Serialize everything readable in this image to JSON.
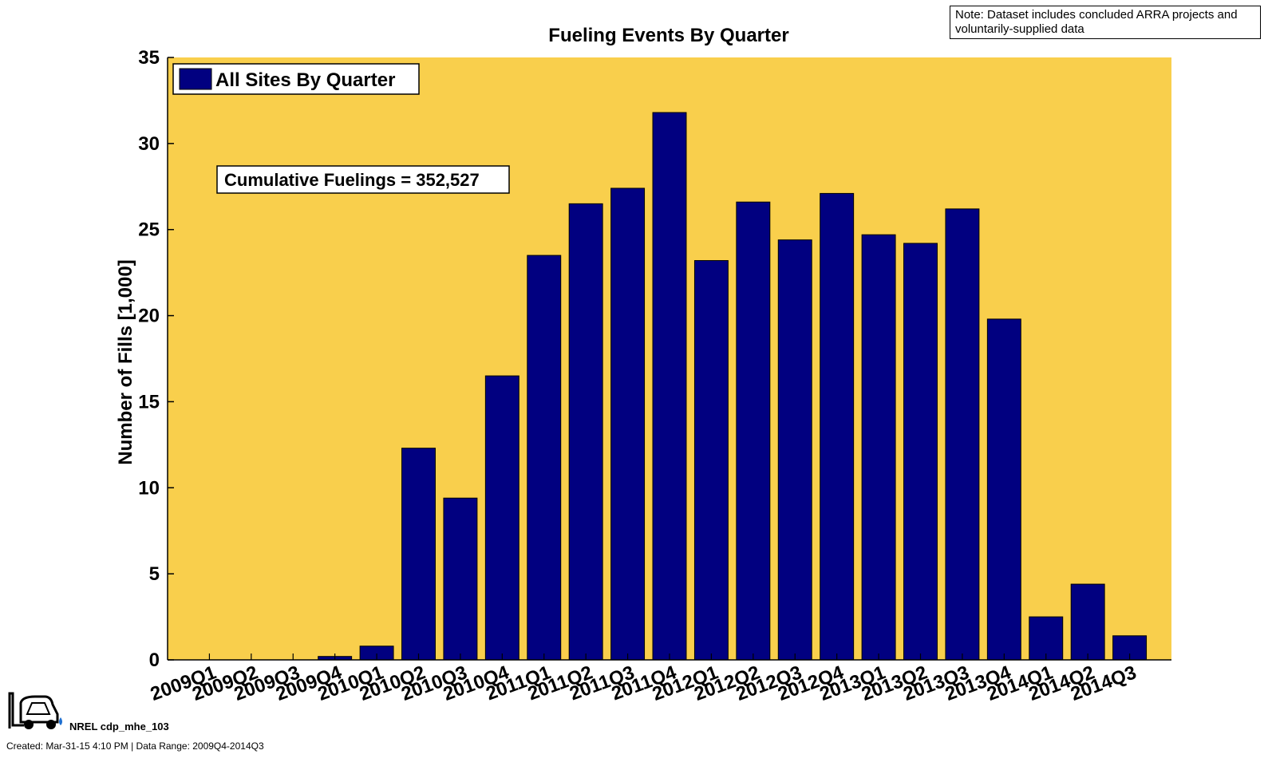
{
  "note": "Note: Dataset includes concluded ARRA projects and voluntarily-supplied data",
  "footer": {
    "id": "NREL cdp_mhe_103",
    "created": "Created: Mar-31-15  4:10 PM | Data Range: 2009Q4-2014Q3"
  },
  "colors": {
    "plot_bg": "#f9cf4c",
    "bar": "#010080"
  },
  "chart_data": {
    "type": "bar",
    "title": "Fueling Events By Quarter",
    "xlabel": "",
    "ylabel": "Number of Fills [1,000]",
    "ylim": [
      0,
      35
    ],
    "yticks": [
      0,
      5,
      10,
      15,
      20,
      25,
      30,
      35
    ],
    "legend": {
      "label": "All Sites By Quarter",
      "placement": "top-left"
    },
    "annotation": "Cumulative Fuelings = 352,527",
    "grid": false,
    "categories": [
      "2009Q1",
      "2009Q2",
      "2009Q3",
      "2009Q4",
      "2010Q1",
      "2010Q2",
      "2010Q3",
      "2010Q4",
      "2011Q1",
      "2011Q2",
      "2011Q3",
      "2011Q4",
      "2012Q1",
      "2012Q2",
      "2012Q3",
      "2012Q4",
      "2013Q1",
      "2013Q2",
      "2013Q3",
      "2013Q4",
      "2014Q1",
      "2014Q2",
      "2014Q3"
    ],
    "values": [
      0,
      0,
      0,
      0.2,
      0.8,
      12.3,
      9.4,
      16.5,
      23.5,
      26.5,
      27.4,
      31.8,
      23.2,
      26.6,
      24.4,
      27.1,
      24.7,
      24.2,
      26.2,
      19.8,
      2.5,
      4.4,
      1.4
    ]
  }
}
